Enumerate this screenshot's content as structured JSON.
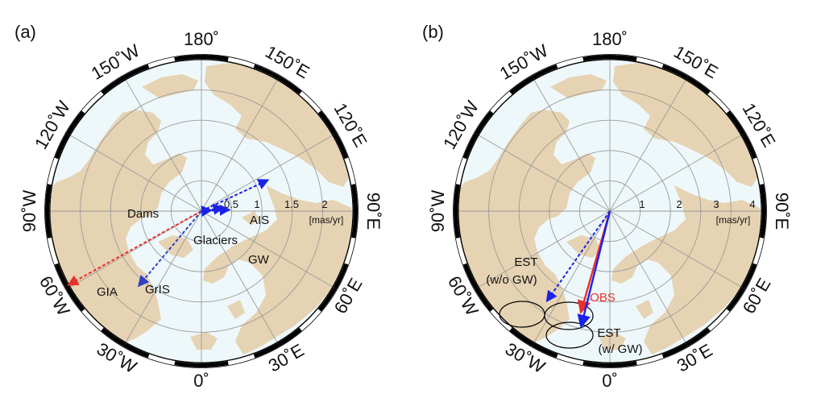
{
  "panels": [
    {
      "id": "a",
      "label": "(a)",
      "ring_labels": [
        "0.5",
        "1",
        "1.5",
        "2"
      ],
      "unit": "[mas/yr]",
      "vectors": [
        {
          "name": "GIA",
          "magnitude": 2.5,
          "direction_deg": 61,
          "color": "#e8312a",
          "style": "dashed"
        },
        {
          "name": "GrIS",
          "magnitude": 1.6,
          "direction_deg": 40,
          "color": "#2e3fc2",
          "style": "dashed"
        },
        {
          "name": "Dams",
          "magnitude": 0.35,
          "direction_deg": -99,
          "color": "#1a22e8",
          "style": "dashed"
        },
        {
          "name": "AIS",
          "magnitude": 0.45,
          "direction_deg": -93,
          "color": "#1a22e8",
          "style": "dashed"
        },
        {
          "name": "Glaciers",
          "magnitude": 0.15,
          "direction_deg": -95,
          "color": "#1a22e8",
          "style": "dashed"
        },
        {
          "name": "GW",
          "magnitude": 1.2,
          "direction_deg": -115,
          "color": "#1a22e8",
          "style": "dashed"
        }
      ]
    },
    {
      "id": "b",
      "label": "(b)",
      "ring_labels": [
        "1",
        "2",
        "3",
        "4"
      ],
      "unit": "[mas/yr]",
      "vectors": [
        {
          "name": "EST\n(w/o GW)",
          "magnitude": 3.6,
          "direction_deg": 35,
          "color": "#1a22e8",
          "style": "dashed"
        },
        {
          "name": "OBS",
          "magnitude": 3.45,
          "direction_deg": 16,
          "color": "#e8312a",
          "style": "solid"
        },
        {
          "name": "EST\n(w/ GW)",
          "magnitude": 3.9,
          "direction_deg": 14,
          "color": "#1a22e8",
          "style": "solid"
        }
      ]
    }
  ],
  "longitude_labels": [
    "180˚",
    "150˚E",
    "120˚E",
    "90˚E",
    "60˚E",
    "30˚E",
    "0˚",
    "30˚W",
    "60˚W",
    "90˚W",
    "120˚W",
    "150˚W"
  ],
  "colors": {
    "ocean": "#eef8fb",
    "land": "#e6d3b3",
    "grid": "#9a9a9a",
    "frame": "#000000"
  }
}
